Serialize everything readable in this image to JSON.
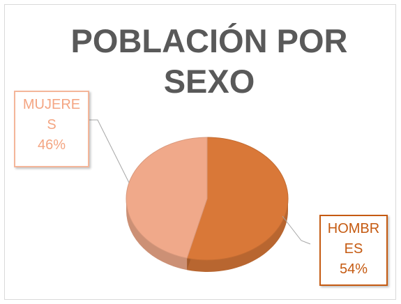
{
  "chart_data": {
    "type": "pie",
    "title": "POBLACIÓN POR SEXO",
    "categories": [
      "HOMBRES",
      "MUJERES"
    ],
    "values": [
      54,
      46
    ],
    "value_labels": [
      "54%",
      "46%"
    ],
    "colors": [
      "#d97838",
      "#f0a98a"
    ]
  }
}
